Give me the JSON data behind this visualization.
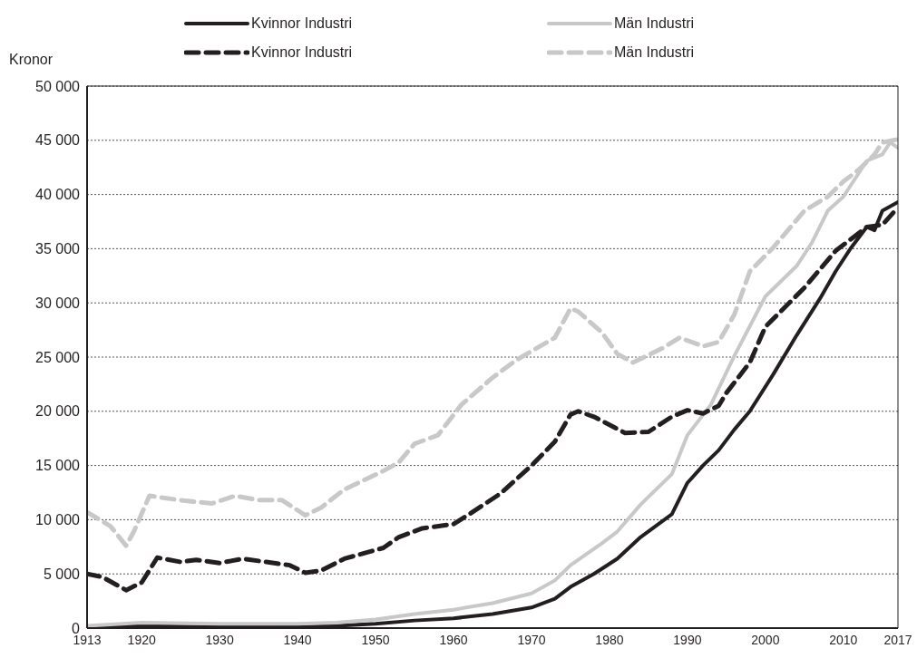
{
  "chart_data": {
    "type": "line",
    "ylabel": "Kronor",
    "xlim": [
      1913,
      2017
    ],
    "xticks": [
      1913,
      1920,
      1930,
      1940,
      1950,
      1960,
      1970,
      1980,
      1990,
      2000,
      2010,
      2017
    ],
    "ylim": [
      0,
      50000
    ],
    "yticks": [
      {
        "value": 0,
        "label": "0"
      },
      {
        "value": 5000,
        "label": "5 000"
      },
      {
        "value": 10000,
        "label": "10 000"
      },
      {
        "value": 15000,
        "label": "15 000"
      },
      {
        "value": 20000,
        "label": "20 000"
      },
      {
        "value": 25000,
        "label": "25 000"
      },
      {
        "value": 30000,
        "label": "30 000"
      },
      {
        "value": 35000,
        "label": "35 000"
      },
      {
        "value": 40000,
        "label": "40 000"
      },
      {
        "value": 45000,
        "label": "45 000"
      },
      {
        "value": 50000,
        "label": "50 000"
      }
    ],
    "grid": "y",
    "legend": "top",
    "marker": "none",
    "series": [
      {
        "name": "Kvinnor Industri",
        "color": "#231f20",
        "line_style": "solid",
        "x": [
          1913,
          1920,
          1930,
          1940,
          1945,
          1950,
          1955,
          1960,
          1965,
          1970,
          1973,
          1975,
          1978,
          1981,
          1984,
          1988,
          1990,
          1992,
          1994,
          1996,
          1998,
          2001,
          2004,
          2007,
          2009,
          2011,
          2013,
          2014,
          2015,
          2017
        ],
        "values": [
          100,
          200,
          100,
          100,
          200,
          400,
          700,
          900,
          1300,
          1900,
          2700,
          3800,
          5000,
          6400,
          8400,
          10500,
          13400,
          15000,
          16400,
          18300,
          20000,
          23400,
          27000,
          30400,
          32900,
          35100,
          37000,
          36700,
          38500,
          39300
        ]
      },
      {
        "name": "Män Industri",
        "color": "#c8c8c8",
        "line_style": "solid",
        "x": [
          1913,
          1920,
          1930,
          1940,
          1945,
          1950,
          1955,
          1960,
          1965,
          1970,
          1973,
          1975,
          1979,
          1981,
          1984,
          1988,
          1990,
          1993,
          1996,
          2000,
          2004,
          2006,
          2008,
          2010,
          2013,
          2015,
          2016,
          2017
        ],
        "values": [
          200,
          500,
          400,
          400,
          500,
          800,
          1300,
          1700,
          2300,
          3200,
          4400,
          5800,
          7800,
          8900,
          11400,
          14200,
          17800,
          20600,
          25100,
          30600,
          33400,
          35600,
          38500,
          39800,
          43100,
          43700,
          44800,
          44300
        ]
      },
      {
        "name": "Kvinnor Industri",
        "color": "#231f20",
        "line_style": "dashed",
        "x": [
          1913,
          1915,
          1918,
          1920,
          1922,
          1925,
          1927,
          1930,
          1933,
          1936,
          1939,
          1941,
          1943,
          1946,
          1951,
          1953,
          1956,
          1960,
          1962,
          1966,
          1970,
          1973,
          1975,
          1976,
          1978,
          1982,
          1985,
          1988,
          1990,
          1992,
          1994,
          1995,
          1998,
          2000,
          2005,
          2009,
          2013,
          2015,
          2017
        ],
        "values": [
          5000,
          4700,
          3500,
          4200,
          6500,
          6100,
          6300,
          6000,
          6400,
          6100,
          5800,
          5100,
          5300,
          6400,
          7400,
          8400,
          9200,
          9600,
          10500,
          12400,
          15000,
          17200,
          19700,
          20000,
          19500,
          18000,
          18100,
          19500,
          20100,
          19800,
          20500,
          21700,
          24500,
          27800,
          31400,
          34800,
          37000,
          37200,
          38800
        ]
      },
      {
        "name": "Män Industri",
        "color": "#c8c8c8",
        "line_style": "dashed",
        "x": [
          1913,
          1916,
          1918,
          1919,
          1921,
          1925,
          1929,
          1932,
          1935,
          1938,
          1941,
          1943,
          1946,
          1951,
          1953,
          1955,
          1958,
          1961,
          1965,
          1968,
          1973,
          1975,
          1976,
          1979,
          1981,
          1983,
          1987,
          1989,
          1992,
          1994,
          1996,
          1998,
          2001,
          2005,
          2008,
          2010,
          2012,
          2014,
          2015,
          2017
        ],
        "values": [
          10700,
          9400,
          7600,
          8900,
          12200,
          11800,
          11500,
          12200,
          11800,
          11800,
          10400,
          11100,
          12800,
          14500,
          15300,
          17000,
          17800,
          20600,
          23100,
          24700,
          26800,
          29500,
          29200,
          27300,
          25300,
          24500,
          25900,
          26800,
          26000,
          26400,
          28900,
          32900,
          35100,
          38500,
          39800,
          41200,
          42300,
          43700,
          44800,
          45100
        ]
      }
    ]
  }
}
